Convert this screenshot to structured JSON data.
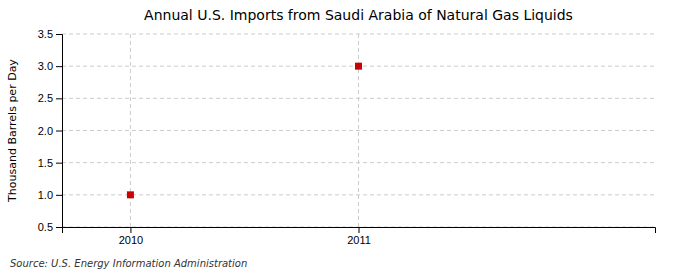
{
  "chart_data": {
    "type": "scatter",
    "title": "Annual U.S. Imports from Saudi Arabia of Natural Gas Liquids",
    "ylabel": "Thousand Barrels per Day",
    "annotations": [
      "Source: U.S. Energy Information Administration"
    ],
    "x": [
      2010,
      2011
    ],
    "values": [
      1.0,
      3.0
    ],
    "color": "#cc0000",
    "marker": "square",
    "xlim": [
      2009.7,
      2012.3
    ],
    "ylim": [
      0.5,
      3.5
    ],
    "xticks": [
      2010,
      2011
    ],
    "yticks": [
      0.5,
      {
        "value": 1.0,
        "label": "1.0"
      },
      1.5,
      {
        "value": 2.0,
        "label": "2.0"
      },
      2.5,
      {
        "value": 3.0,
        "label": "3.0"
      },
      3.5
    ],
    "grid": true
  }
}
